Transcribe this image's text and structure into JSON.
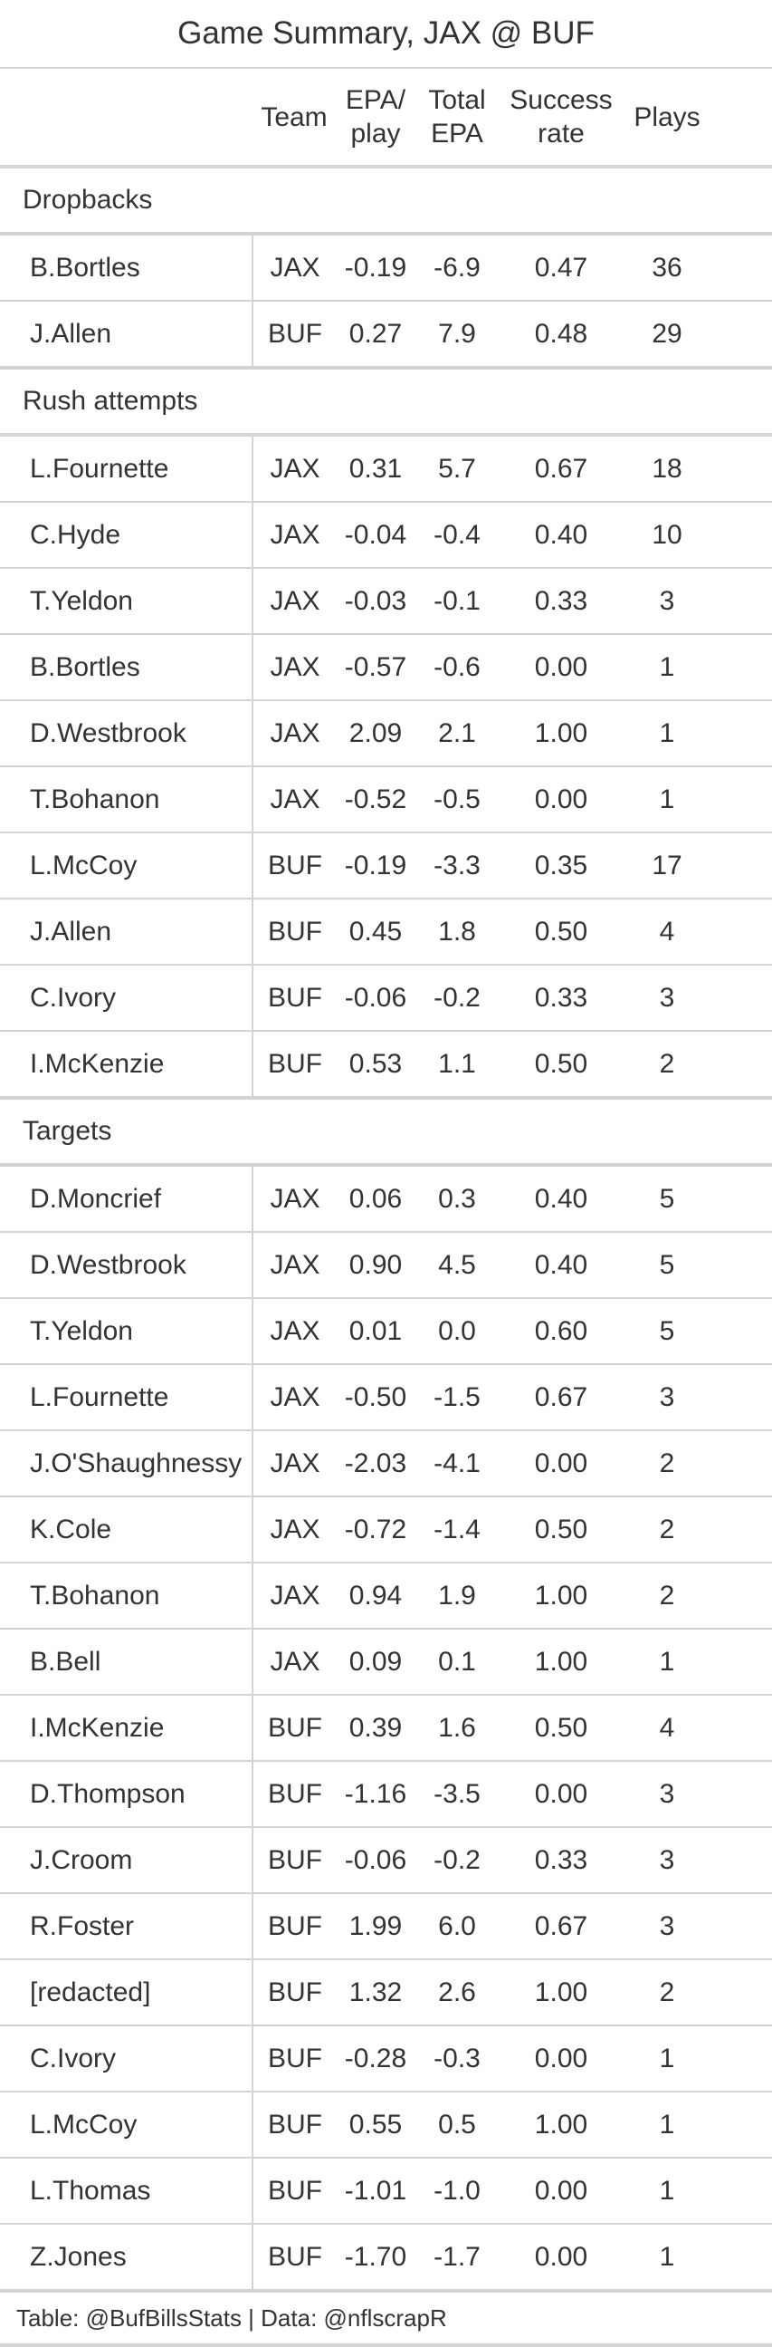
{
  "title": "Game Summary, JAX @ BUF",
  "headers": {
    "player": "",
    "team": "Team",
    "epa_play": "EPA/\nplay",
    "total_epa": "Total\nEPA",
    "success_rate": "Success\nrate",
    "plays": "Plays"
  },
  "groups": [
    {
      "label": "Dropbacks",
      "rows": [
        {
          "player": "B.Bortles",
          "team": "JAX",
          "epa": "-0.19",
          "total": "-6.9",
          "success": "0.47",
          "plays": "36"
        },
        {
          "player": "J.Allen",
          "team": "BUF",
          "epa": "0.27",
          "total": "7.9",
          "success": "0.48",
          "plays": "29"
        }
      ]
    },
    {
      "label": "Rush attempts",
      "rows": [
        {
          "player": "L.Fournette",
          "team": "JAX",
          "epa": "0.31",
          "total": "5.7",
          "success": "0.67",
          "plays": "18"
        },
        {
          "player": "C.Hyde",
          "team": "JAX",
          "epa": "-0.04",
          "total": "-0.4",
          "success": "0.40",
          "plays": "10"
        },
        {
          "player": "T.Yeldon",
          "team": "JAX",
          "epa": "-0.03",
          "total": "-0.1",
          "success": "0.33",
          "plays": "3"
        },
        {
          "player": "B.Bortles",
          "team": "JAX",
          "epa": "-0.57",
          "total": "-0.6",
          "success": "0.00",
          "plays": "1"
        },
        {
          "player": "D.Westbrook",
          "team": "JAX",
          "epa": "2.09",
          "total": "2.1",
          "success": "1.00",
          "plays": "1"
        },
        {
          "player": "T.Bohanon",
          "team": "JAX",
          "epa": "-0.52",
          "total": "-0.5",
          "success": "0.00",
          "plays": "1"
        },
        {
          "player": "L.McCoy",
          "team": "BUF",
          "epa": "-0.19",
          "total": "-3.3",
          "success": "0.35",
          "plays": "17"
        },
        {
          "player": "J.Allen",
          "team": "BUF",
          "epa": "0.45",
          "total": "1.8",
          "success": "0.50",
          "plays": "4"
        },
        {
          "player": "C.Ivory",
          "team": "BUF",
          "epa": "-0.06",
          "total": "-0.2",
          "success": "0.33",
          "plays": "3"
        },
        {
          "player": "I.McKenzie",
          "team": "BUF",
          "epa": "0.53",
          "total": "1.1",
          "success": "0.50",
          "plays": "2"
        }
      ]
    },
    {
      "label": "Targets",
      "rows": [
        {
          "player": "D.Moncrief",
          "team": "JAX",
          "epa": "0.06",
          "total": "0.3",
          "success": "0.40",
          "plays": "5"
        },
        {
          "player": "D.Westbrook",
          "team": "JAX",
          "epa": "0.90",
          "total": "4.5",
          "success": "0.40",
          "plays": "5"
        },
        {
          "player": "T.Yeldon",
          "team": "JAX",
          "epa": "0.01",
          "total": "0.0",
          "success": "0.60",
          "plays": "5"
        },
        {
          "player": "L.Fournette",
          "team": "JAX",
          "epa": "-0.50",
          "total": "-1.5",
          "success": "0.67",
          "plays": "3"
        },
        {
          "player": "J.O'Shaughnessy",
          "team": "JAX",
          "epa": "-2.03",
          "total": "-4.1",
          "success": "0.00",
          "plays": "2"
        },
        {
          "player": "K.Cole",
          "team": "JAX",
          "epa": "-0.72",
          "total": "-1.4",
          "success": "0.50",
          "plays": "2"
        },
        {
          "player": "T.Bohanon",
          "team": "JAX",
          "epa": "0.94",
          "total": "1.9",
          "success": "1.00",
          "plays": "2"
        },
        {
          "player": "B.Bell",
          "team": "JAX",
          "epa": "0.09",
          "total": "0.1",
          "success": "1.00",
          "plays": "1"
        },
        {
          "player": "I.McKenzie",
          "team": "BUF",
          "epa": "0.39",
          "total": "1.6",
          "success": "0.50",
          "plays": "4"
        },
        {
          "player": "D.Thompson",
          "team": "BUF",
          "epa": "-1.16",
          "total": "-3.5",
          "success": "0.00",
          "plays": "3"
        },
        {
          "player": "J.Croom",
          "team": "BUF",
          "epa": "-0.06",
          "total": "-0.2",
          "success": "0.33",
          "plays": "3"
        },
        {
          "player": "R.Foster",
          "team": "BUF",
          "epa": "1.99",
          "total": "6.0",
          "success": "0.67",
          "plays": "3"
        },
        {
          "player": "[redacted]",
          "team": "BUF",
          "epa": "1.32",
          "total": "2.6",
          "success": "1.00",
          "plays": "2"
        },
        {
          "player": "C.Ivory",
          "team": "BUF",
          "epa": "-0.28",
          "total": "-0.3",
          "success": "0.00",
          "plays": "1"
        },
        {
          "player": "L.McCoy",
          "team": "BUF",
          "epa": "0.55",
          "total": "0.5",
          "success": "1.00",
          "plays": "1"
        },
        {
          "player": "L.Thomas",
          "team": "BUF",
          "epa": "-1.01",
          "total": "-1.0",
          "success": "0.00",
          "plays": "1"
        },
        {
          "player": "Z.Jones",
          "team": "BUF",
          "epa": "-1.70",
          "total": "-1.7",
          "success": "0.00",
          "plays": "1"
        }
      ]
    }
  ],
  "source": "Table: @BufBillsStats | Data: @nflscrapR"
}
